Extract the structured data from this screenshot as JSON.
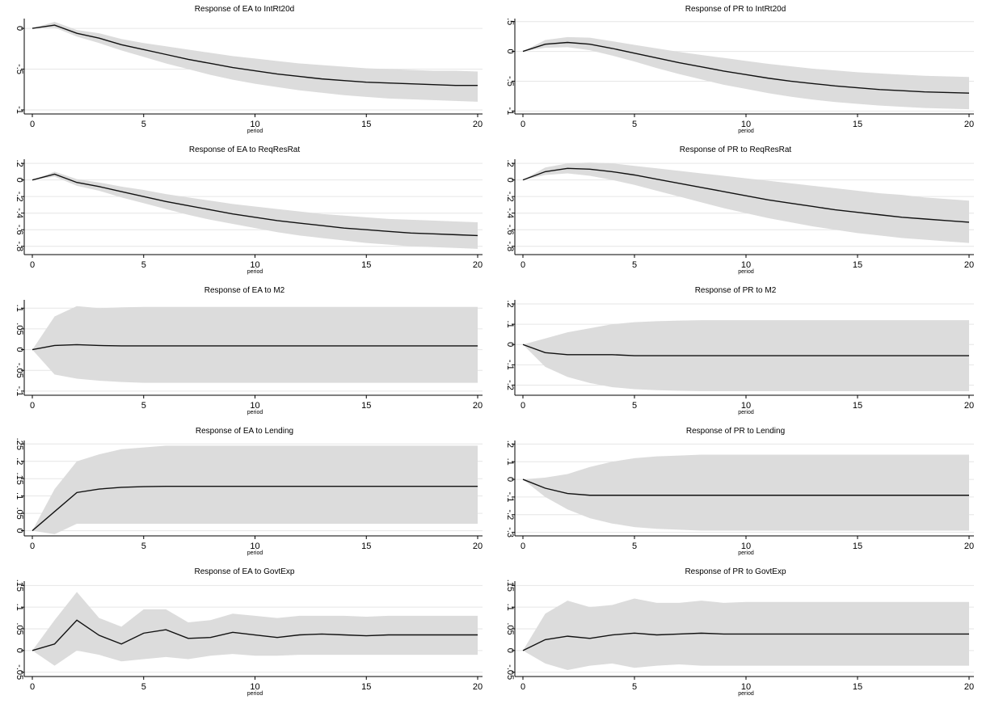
{
  "chart_data": [
    {
      "type": "line",
      "title": "Response of EA to IntRt20d",
      "xlabel": "period",
      "xlim": [
        0,
        20
      ],
      "xticks": [
        0,
        5,
        10,
        15,
        20
      ],
      "ylim": [
        -1.05,
        0.12
      ],
      "yticks": [
        0,
        -0.5,
        -1
      ],
      "ytick_labels": [
        "0",
        "-.5",
        "-1"
      ],
      "x": [
        0,
        1,
        2,
        3,
        4,
        5,
        6,
        7,
        8,
        9,
        10,
        11,
        12,
        13,
        14,
        15,
        16,
        17,
        18,
        19,
        20
      ],
      "values": [
        0,
        0.04,
        -0.06,
        -0.12,
        -0.2,
        -0.26,
        -0.32,
        -0.38,
        -0.43,
        -0.48,
        -0.52,
        -0.56,
        -0.59,
        -0.62,
        -0.64,
        -0.66,
        -0.67,
        -0.68,
        -0.69,
        -0.7,
        -0.7
      ],
      "lower": [
        0,
        0.01,
        -0.1,
        -0.18,
        -0.27,
        -0.35,
        -0.43,
        -0.5,
        -0.57,
        -0.63,
        -0.68,
        -0.72,
        -0.76,
        -0.79,
        -0.82,
        -0.84,
        -0.86,
        -0.87,
        -0.88,
        -0.89,
        -0.9
      ],
      "upper": [
        0,
        0.08,
        -0.02,
        -0.06,
        -0.13,
        -0.18,
        -0.22,
        -0.26,
        -0.3,
        -0.34,
        -0.37,
        -0.4,
        -0.43,
        -0.45,
        -0.47,
        -0.49,
        -0.5,
        -0.51,
        -0.52,
        -0.52,
        -0.53
      ]
    },
    {
      "type": "line",
      "title": "Response of PR to IntRt20d",
      "xlabel": "period",
      "xlim": [
        0,
        20
      ],
      "xticks": [
        0,
        5,
        10,
        15,
        20
      ],
      "ylim": [
        -1.05,
        0.55
      ],
      "yticks": [
        0.5,
        0,
        -0.5,
        -1
      ],
      "ytick_labels": [
        ".5",
        "0",
        "-.5",
        "-1"
      ],
      "x": [
        0,
        1,
        2,
        3,
        4,
        5,
        6,
        7,
        8,
        9,
        10,
        11,
        12,
        13,
        14,
        15,
        16,
        17,
        18,
        19,
        20
      ],
      "values": [
        0,
        0.12,
        0.15,
        0.12,
        0.05,
        -0.03,
        -0.11,
        -0.19,
        -0.26,
        -0.33,
        -0.39,
        -0.45,
        -0.5,
        -0.54,
        -0.58,
        -0.61,
        -0.64,
        -0.66,
        -0.68,
        -0.69,
        -0.7
      ],
      "lower": [
        0,
        0.06,
        0.07,
        0.02,
        -0.07,
        -0.17,
        -0.28,
        -0.38,
        -0.47,
        -0.56,
        -0.63,
        -0.7,
        -0.76,
        -0.81,
        -0.85,
        -0.88,
        -0.91,
        -0.93,
        -0.95,
        -0.96,
        -0.97
      ],
      "upper": [
        0,
        0.19,
        0.24,
        0.23,
        0.17,
        0.11,
        0.05,
        -0.01,
        -0.06,
        -0.11,
        -0.16,
        -0.21,
        -0.25,
        -0.29,
        -0.32,
        -0.35,
        -0.37,
        -0.39,
        -0.41,
        -0.42,
        -0.43
      ]
    },
    {
      "type": "line",
      "title": "Response of EA to ReqResRat",
      "xlabel": "period",
      "xlim": [
        0,
        20
      ],
      "xticks": [
        0,
        5,
        10,
        15,
        20
      ],
      "ylim": [
        -0.9,
        0.25
      ],
      "yticks": [
        0.2,
        0,
        -0.2,
        -0.4,
        -0.6,
        -0.8
      ],
      "ytick_labels": [
        ".2",
        "0",
        "-.2",
        "-.4",
        "-.6",
        "-.8"
      ],
      "x": [
        0,
        1,
        2,
        3,
        4,
        5,
        6,
        7,
        8,
        9,
        10,
        11,
        12,
        13,
        14,
        15,
        16,
        17,
        18,
        19,
        20
      ],
      "values": [
        0,
        0.07,
        -0.03,
        -0.08,
        -0.14,
        -0.2,
        -0.26,
        -0.31,
        -0.36,
        -0.41,
        -0.45,
        -0.49,
        -0.52,
        -0.55,
        -0.58,
        -0.6,
        -0.62,
        -0.64,
        -0.65,
        -0.66,
        -0.67
      ],
      "lower": [
        0,
        0.04,
        -0.07,
        -0.13,
        -0.21,
        -0.28,
        -0.35,
        -0.42,
        -0.48,
        -0.53,
        -0.58,
        -0.63,
        -0.67,
        -0.7,
        -0.73,
        -0.76,
        -0.78,
        -0.8,
        -0.81,
        -0.82,
        -0.83
      ],
      "upper": [
        0,
        0.1,
        0.01,
        -0.03,
        -0.08,
        -0.12,
        -0.17,
        -0.21,
        -0.25,
        -0.29,
        -0.32,
        -0.35,
        -0.38,
        -0.41,
        -0.43,
        -0.45,
        -0.47,
        -0.48,
        -0.49,
        -0.5,
        -0.51
      ]
    },
    {
      "type": "line",
      "title": "Response of PR to ReqResRat",
      "xlabel": "period",
      "xlim": [
        0,
        20
      ],
      "xticks": [
        0,
        5,
        10,
        15,
        20
      ],
      "ylim": [
        -0.9,
        0.25
      ],
      "yticks": [
        0.2,
        0,
        -0.2,
        -0.4,
        -0.6,
        -0.8
      ],
      "ytick_labels": [
        ".2",
        "0",
        "-.2",
        "-.4",
        "-.6",
        "-.8"
      ],
      "x": [
        0,
        1,
        2,
        3,
        4,
        5,
        6,
        7,
        8,
        9,
        10,
        11,
        12,
        13,
        14,
        15,
        16,
        17,
        18,
        19,
        20
      ],
      "values": [
        0,
        0.1,
        0.14,
        0.13,
        0.1,
        0.06,
        0.01,
        -0.04,
        -0.09,
        -0.14,
        -0.19,
        -0.24,
        -0.28,
        -0.32,
        -0.36,
        -0.39,
        -0.42,
        -0.45,
        -0.47,
        -0.49,
        -0.51
      ],
      "lower": [
        0,
        0.06,
        0.08,
        0.05,
        0.0,
        -0.06,
        -0.13,
        -0.2,
        -0.27,
        -0.34,
        -0.4,
        -0.46,
        -0.51,
        -0.56,
        -0.6,
        -0.64,
        -0.67,
        -0.7,
        -0.72,
        -0.74,
        -0.76
      ],
      "upper": [
        0,
        0.15,
        0.2,
        0.21,
        0.2,
        0.17,
        0.14,
        0.11,
        0.08,
        0.05,
        0.02,
        -0.01,
        -0.04,
        -0.07,
        -0.1,
        -0.13,
        -0.16,
        -0.18,
        -0.21,
        -0.23,
        -0.25
      ]
    },
    {
      "type": "line",
      "title": "Response of EA to M2",
      "xlabel": "period",
      "xlim": [
        0,
        20
      ],
      "xticks": [
        0,
        5,
        10,
        15,
        20
      ],
      "ylim": [
        -0.11,
        0.12
      ],
      "yticks": [
        0.1,
        0.05,
        0,
        -0.05,
        -0.1
      ],
      "ytick_labels": [
        ".1",
        ".05",
        "0",
        "-.05",
        "-.1"
      ],
      "x": [
        0,
        1,
        2,
        3,
        4,
        5,
        6,
        7,
        8,
        9,
        10,
        11,
        12,
        13,
        14,
        15,
        16,
        17,
        18,
        19,
        20
      ],
      "values": [
        0,
        0.01,
        0.012,
        0.01,
        0.009,
        0.009,
        0.009,
        0.009,
        0.009,
        0.009,
        0.009,
        0.009,
        0.009,
        0.009,
        0.009,
        0.009,
        0.009,
        0.009,
        0.009,
        0.009,
        0.009
      ],
      "lower": [
        0,
        -0.06,
        -0.07,
        -0.075,
        -0.078,
        -0.08,
        -0.08,
        -0.08,
        -0.08,
        -0.08,
        -0.08,
        -0.08,
        -0.08,
        -0.08,
        -0.08,
        -0.08,
        -0.08,
        -0.08,
        -0.08,
        -0.08,
        -0.08
      ],
      "upper": [
        0,
        0.08,
        0.105,
        0.1,
        0.102,
        0.103,
        0.103,
        0.103,
        0.103,
        0.103,
        0.103,
        0.103,
        0.103,
        0.103,
        0.103,
        0.103,
        0.103,
        0.103,
        0.103,
        0.103,
        0.103
      ]
    },
    {
      "type": "line",
      "title": "Response of PR to M2",
      "xlabel": "period",
      "xlim": [
        0,
        20
      ],
      "xticks": [
        0,
        5,
        10,
        15,
        20
      ],
      "ylim": [
        -0.25,
        0.22
      ],
      "yticks": [
        0.2,
        0.1,
        0,
        -0.1,
        -0.2
      ],
      "ytick_labels": [
        ".2",
        ".1",
        "0",
        "-.1",
        "-.2"
      ],
      "x": [
        0,
        1,
        2,
        3,
        4,
        5,
        6,
        7,
        8,
        9,
        10,
        11,
        12,
        13,
        14,
        15,
        16,
        17,
        18,
        19,
        20
      ],
      "values": [
        0,
        -0.04,
        -0.05,
        -0.05,
        -0.05,
        -0.055,
        -0.055,
        -0.055,
        -0.055,
        -0.055,
        -0.055,
        -0.055,
        -0.055,
        -0.055,
        -0.055,
        -0.055,
        -0.055,
        -0.055,
        -0.055,
        -0.055,
        -0.055
      ],
      "lower": [
        0,
        -0.11,
        -0.16,
        -0.19,
        -0.21,
        -0.22,
        -0.225,
        -0.228,
        -0.23,
        -0.23,
        -0.23,
        -0.23,
        -0.23,
        -0.23,
        -0.23,
        -0.23,
        -0.23,
        -0.23,
        -0.23,
        -0.23,
        -0.23
      ],
      "upper": [
        0,
        0.03,
        0.06,
        0.08,
        0.1,
        0.11,
        0.115,
        0.118,
        0.12,
        0.12,
        0.12,
        0.12,
        0.12,
        0.12,
        0.12,
        0.12,
        0.12,
        0.12,
        0.12,
        0.12,
        0.12
      ]
    },
    {
      "type": "line",
      "title": "Response of EA to Lending",
      "xlabel": "period",
      "xlim": [
        0,
        20
      ],
      "xticks": [
        0,
        5,
        10,
        15,
        20
      ],
      "ylim": [
        -0.015,
        0.26
      ],
      "yticks": [
        0,
        0.05,
        0.1,
        0.15,
        0.2,
        0.25
      ],
      "ytick_labels": [
        "0",
        ".05",
        ".1",
        ".15",
        ".2",
        ".25"
      ],
      "x": [
        0,
        1,
        2,
        3,
        4,
        5,
        6,
        7,
        8,
        9,
        10,
        11,
        12,
        13,
        14,
        15,
        16,
        17,
        18,
        19,
        20
      ],
      "values": [
        0,
        0.055,
        0.11,
        0.12,
        0.125,
        0.127,
        0.128,
        0.128,
        0.128,
        0.128,
        0.128,
        0.128,
        0.128,
        0.128,
        0.128,
        0.128,
        0.128,
        0.128,
        0.128,
        0.128,
        0.128
      ],
      "lower": [
        0,
        -0.01,
        0.02,
        0.02,
        0.02,
        0.02,
        0.02,
        0.02,
        0.02,
        0.02,
        0.02,
        0.02,
        0.02,
        0.02,
        0.02,
        0.02,
        0.02,
        0.02,
        0.02,
        0.02,
        0.02
      ],
      "upper": [
        0,
        0.12,
        0.2,
        0.22,
        0.235,
        0.24,
        0.245,
        0.245,
        0.245,
        0.245,
        0.245,
        0.245,
        0.245,
        0.245,
        0.245,
        0.245,
        0.245,
        0.245,
        0.245,
        0.245,
        0.245
      ]
    },
    {
      "type": "line",
      "title": "Response of PR to Lending",
      "xlabel": "period",
      "xlim": [
        0,
        20
      ],
      "xticks": [
        0,
        5,
        10,
        15,
        20
      ],
      "ylim": [
        -0.32,
        0.22
      ],
      "yticks": [
        0.2,
        0.1,
        0,
        -0.1,
        -0.2,
        -0.3
      ],
      "ytick_labels": [
        ".2",
        ".1",
        "0",
        "-.1",
        "-.2",
        "-.3"
      ],
      "x": [
        0,
        1,
        2,
        3,
        4,
        5,
        6,
        7,
        8,
        9,
        10,
        11,
        12,
        13,
        14,
        15,
        16,
        17,
        18,
        19,
        20
      ],
      "values": [
        0,
        -0.05,
        -0.08,
        -0.09,
        -0.09,
        -0.09,
        -0.09,
        -0.09,
        -0.09,
        -0.09,
        -0.09,
        -0.09,
        -0.09,
        -0.09,
        -0.09,
        -0.09,
        -0.09,
        -0.09,
        -0.09,
        -0.09,
        -0.09
      ],
      "lower": [
        0,
        -0.1,
        -0.17,
        -0.22,
        -0.25,
        -0.27,
        -0.28,
        -0.285,
        -0.29,
        -0.29,
        -0.29,
        -0.29,
        -0.29,
        -0.29,
        -0.29,
        -0.29,
        -0.29,
        -0.29,
        -0.29,
        -0.29,
        -0.29
      ],
      "upper": [
        0,
        0.01,
        0.03,
        0.07,
        0.1,
        0.12,
        0.13,
        0.135,
        0.14,
        0.14,
        0.14,
        0.14,
        0.14,
        0.14,
        0.14,
        0.14,
        0.14,
        0.14,
        0.14,
        0.14,
        0.14
      ]
    },
    {
      "type": "line",
      "title": "Response of EA to GovtExp",
      "xlabel": "period",
      "xlim": [
        0,
        20
      ],
      "xticks": [
        0,
        5,
        10,
        15,
        20
      ],
      "ylim": [
        -0.06,
        0.16
      ],
      "yticks": [
        0.15,
        0.1,
        0.05,
        0,
        -0.05
      ],
      "ytick_labels": [
        ".15",
        ".1",
        ".05",
        "0",
        "-.05"
      ],
      "x": [
        0,
        1,
        2,
        3,
        4,
        5,
        6,
        7,
        8,
        9,
        10,
        11,
        12,
        13,
        14,
        15,
        16,
        17,
        18,
        19,
        20
      ],
      "values": [
        0,
        0.015,
        0.07,
        0.035,
        0.015,
        0.04,
        0.048,
        0.028,
        0.03,
        0.042,
        0.036,
        0.03,
        0.036,
        0.038,
        0.036,
        0.034,
        0.036,
        0.036,
        0.036,
        0.036,
        0.036
      ],
      "lower": [
        0,
        -0.035,
        0.0,
        -0.01,
        -0.025,
        -0.02,
        -0.015,
        -0.02,
        -0.012,
        -0.008,
        -0.012,
        -0.012,
        -0.01,
        -0.01,
        -0.01,
        -0.01,
        -0.01,
        -0.01,
        -0.01,
        -0.01,
        -0.01
      ],
      "upper": [
        0,
        0.07,
        0.135,
        0.075,
        0.055,
        0.095,
        0.095,
        0.065,
        0.07,
        0.085,
        0.08,
        0.075,
        0.08,
        0.08,
        0.08,
        0.078,
        0.08,
        0.08,
        0.08,
        0.08,
        0.08
      ]
    },
    {
      "type": "line",
      "title": "Response of PR to GovtExp",
      "xlabel": "period",
      "xlim": [
        0,
        20
      ],
      "xticks": [
        0,
        5,
        10,
        15,
        20
      ],
      "ylim": [
        -0.06,
        0.16
      ],
      "yticks": [
        0.15,
        0.1,
        0.05,
        0,
        -0.05
      ],
      "ytick_labels": [
        ".15",
        ".1",
        ".05",
        "0",
        "-.05"
      ],
      "x": [
        0,
        1,
        2,
        3,
        4,
        5,
        6,
        7,
        8,
        9,
        10,
        11,
        12,
        13,
        14,
        15,
        16,
        17,
        18,
        19,
        20
      ],
      "values": [
        0,
        0.025,
        0.033,
        0.028,
        0.036,
        0.04,
        0.036,
        0.038,
        0.04,
        0.038,
        0.038,
        0.038,
        0.038,
        0.038,
        0.038,
        0.038,
        0.038,
        0.038,
        0.038,
        0.038,
        0.038
      ],
      "lower": [
        0,
        -0.03,
        -0.045,
        -0.035,
        -0.03,
        -0.04,
        -0.035,
        -0.032,
        -0.035,
        -0.035,
        -0.035,
        -0.035,
        -0.035,
        -0.035,
        -0.035,
        -0.035,
        -0.035,
        -0.035,
        -0.035,
        -0.035,
        -0.035
      ],
      "upper": [
        0,
        0.085,
        0.115,
        0.1,
        0.105,
        0.12,
        0.11,
        0.11,
        0.115,
        0.11,
        0.112,
        0.112,
        0.112,
        0.112,
        0.112,
        0.112,
        0.112,
        0.112,
        0.112,
        0.112,
        0.112
      ]
    }
  ]
}
